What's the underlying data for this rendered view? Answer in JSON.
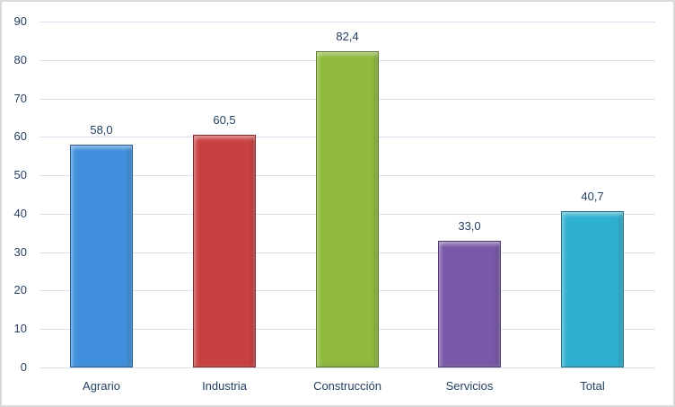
{
  "chart_data": {
    "type": "bar",
    "title": "",
    "xlabel": "",
    "ylabel": "",
    "categories": [
      "Agrario",
      "Industria",
      "Construcción",
      "Servicios",
      "Total"
    ],
    "values": [
      58.0,
      60.5,
      82.4,
      33.0,
      40.7
    ],
    "value_labels": [
      "58,0",
      "60,5",
      "82,4",
      "33,0",
      "40,7"
    ],
    "colors": [
      "#3f8fdc",
      "#c94040",
      "#8fba3d",
      "#7a58a8",
      "#2eb0d0"
    ],
    "ylim": [
      0,
      90
    ],
    "yticks": [
      "0",
      "10",
      "20",
      "30",
      "40",
      "50",
      "60",
      "70",
      "80",
      "90"
    ],
    "grid": true,
    "legend": null
  }
}
